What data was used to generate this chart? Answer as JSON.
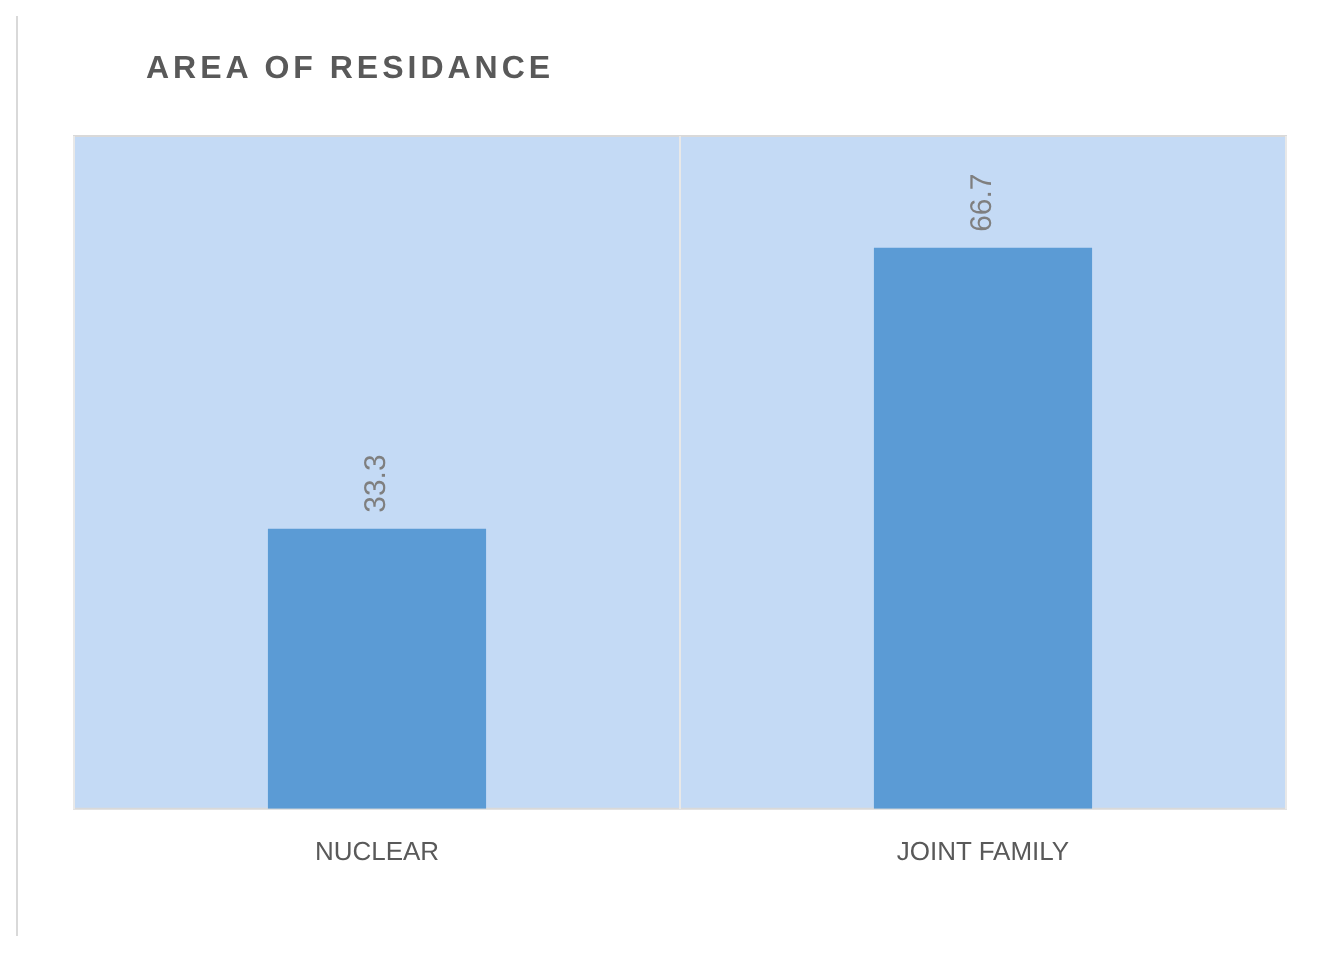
{
  "chart_data": {
    "type": "bar",
    "title": "AREA OF RESIDANCE",
    "categories": [
      "NUCLEAR",
      "JOINT FAMILY"
    ],
    "values": [
      33.3,
      66.7
    ],
    "color": "#5b9bd5",
    "data_labels": true,
    "grid": "x",
    "legend": false
  }
}
